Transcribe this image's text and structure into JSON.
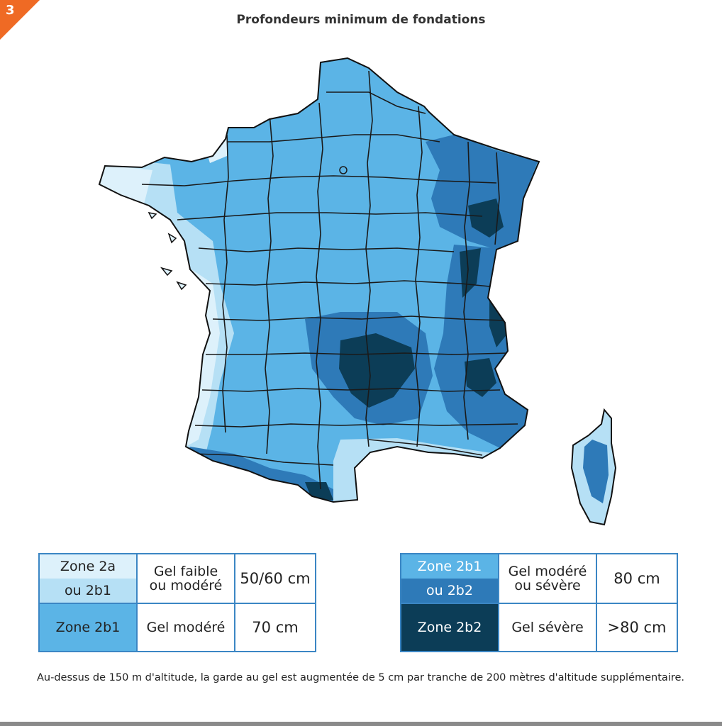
{
  "badge": {
    "number": "3"
  },
  "title": "Profondeurs minimum de fondations",
  "colors": {
    "zone_2a": "#ddf1fb",
    "zone_2a_2b1_light": "#b6e0f5",
    "zone_2b1": "#5bb4e6",
    "zone_2b1_2b2": "#2e7ab8",
    "zone_2b2": "#0c3d57",
    "border": "#3b86c4"
  },
  "legend_left": [
    {
      "zone_top": "Zone 2a",
      "zone_bottom": "ou 2b1",
      "frost_line1": "Gel faible",
      "frost_line2": "ou modéré",
      "depth": "50/60 cm"
    },
    {
      "zone": "Zone 2b1",
      "frost": "Gel modéré",
      "depth": "70 cm"
    }
  ],
  "legend_right": [
    {
      "zone_top": "Zone 2b1",
      "zone_bottom": "ou 2b2",
      "frost_line1": "Gel modéré",
      "frost_line2": "ou sévère",
      "depth": "80 cm"
    },
    {
      "zone": "Zone 2b2",
      "frost": "Gel sévère",
      "depth": ">80 cm"
    }
  ],
  "note": "Au-dessus de 150 m d'altitude, la garde au gel est augmentée  de 5 cm par tranche de 200 mètres d'altitude supplémentaire."
}
